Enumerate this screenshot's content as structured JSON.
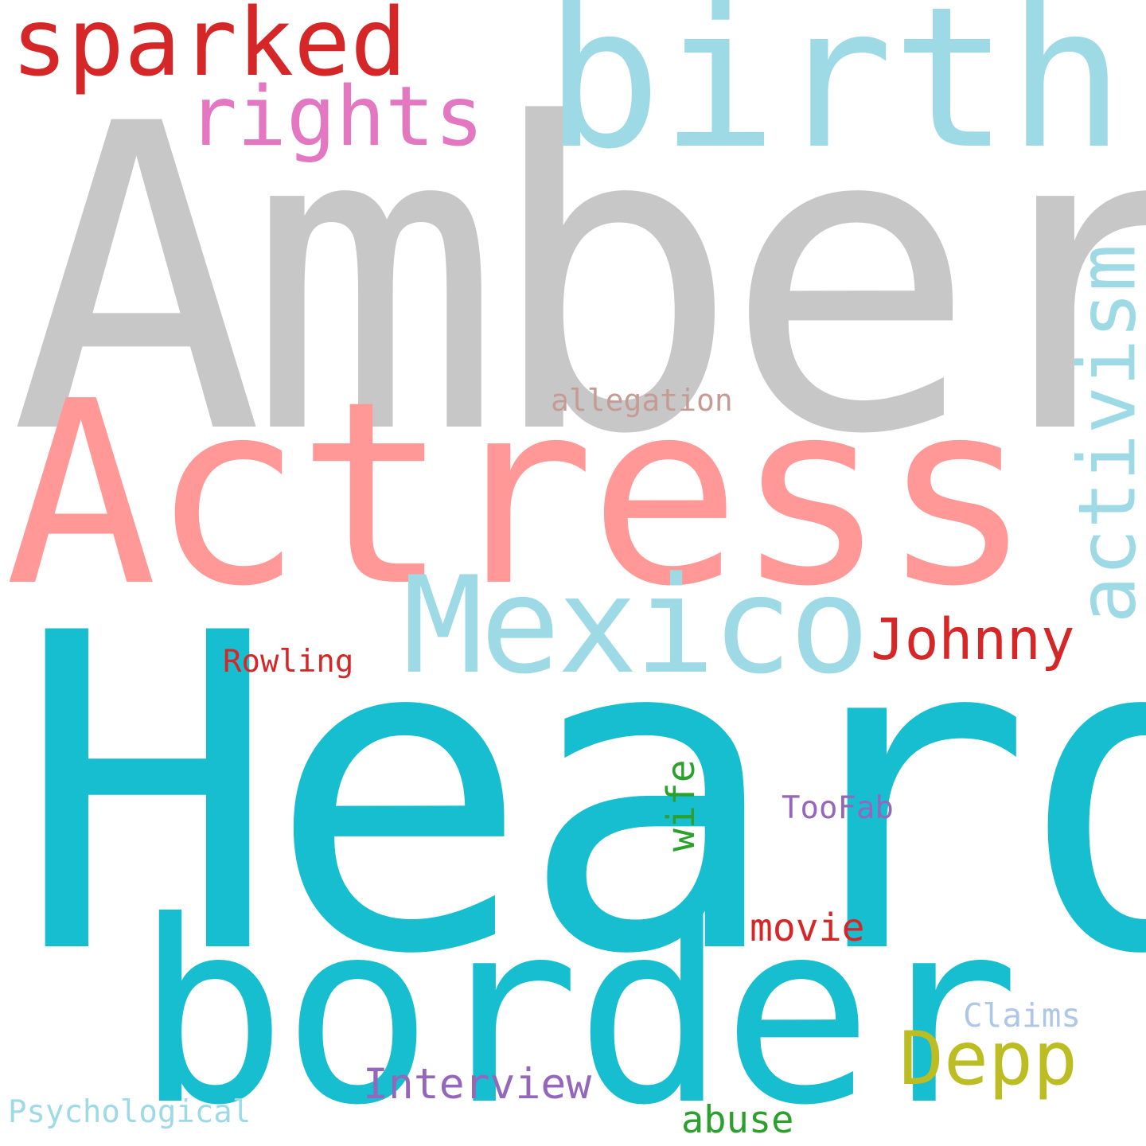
{
  "words": [
    {
      "text": "Amber",
      "color": "#c7c7c7"
    },
    {
      "text": "Heard",
      "color": "#17becf"
    },
    {
      "text": "Actress",
      "color": "#ff9896"
    },
    {
      "text": "border",
      "color": "#17becf"
    },
    {
      "text": "birth",
      "color": "#9edae5"
    },
    {
      "text": "Mexico",
      "color": "#9edae5"
    },
    {
      "text": "activism",
      "color": "#9edae5"
    },
    {
      "text": "sparked",
      "color": "#d62728"
    },
    {
      "text": "rights",
      "color": "#e377c2"
    },
    {
      "text": "Johnny",
      "color": "#d62728"
    },
    {
      "text": "Depp",
      "color": "#bcbd22"
    },
    {
      "text": "allegation",
      "color": "#c49c94"
    },
    {
      "text": "Rowling",
      "color": "#d62728"
    },
    {
      "text": "wife",
      "color": "#2ca02c"
    },
    {
      "text": "TooFab",
      "color": "#9467bd"
    },
    {
      "text": "movie",
      "color": "#d62728"
    },
    {
      "text": "Claims",
      "color": "#aec7e8"
    },
    {
      "text": "Interview",
      "color": "#9467bd"
    },
    {
      "text": "abuse",
      "color": "#2ca02c"
    },
    {
      "text": "Psychological",
      "color": "#9edae5"
    }
  ]
}
